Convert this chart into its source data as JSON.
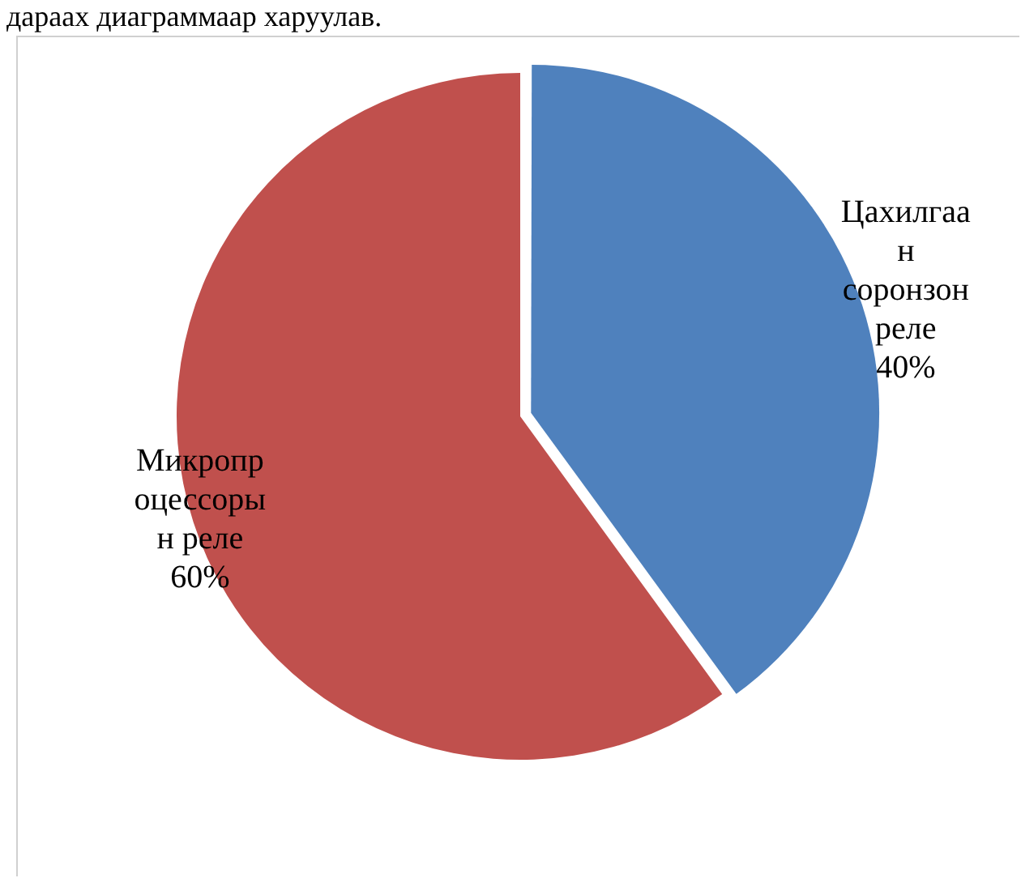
{
  "chart_data": {
    "type": "pie",
    "annotations": [
      "дараах диаграммаар харуулав."
    ],
    "categories": [
      "Цахилгаан соронзон реле",
      "Микропроцессорын реле"
    ],
    "values": [
      40,
      60
    ],
    "colors": [
      "#4f81bd",
      "#c0504d"
    ],
    "value_labels": [
      "40%",
      "60%"
    ],
    "legend": false
  }
}
